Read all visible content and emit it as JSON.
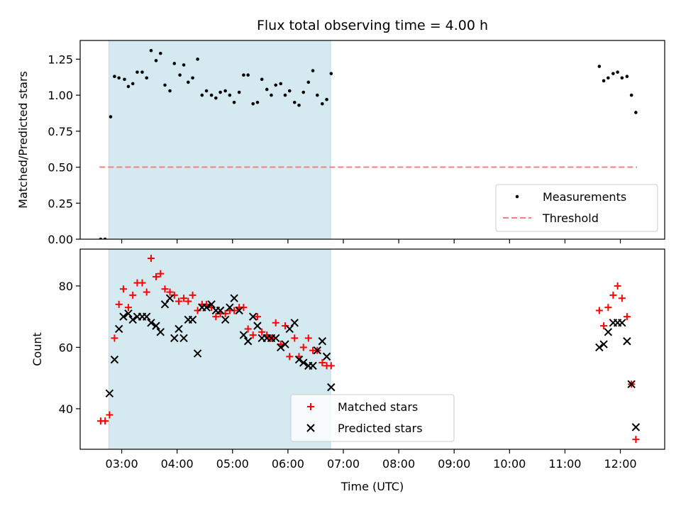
{
  "title": "Flux total observing time = 4.00 h",
  "colors": {
    "shade": "#d4eaf0",
    "measurement": "#000000",
    "threshold": "#f28080",
    "matched": "#ff0000",
    "predicted": "#000000"
  },
  "chart_data": [
    {
      "type": "scatter",
      "ylabel": "Matched/Predicted stars",
      "xlim": [
        2.25,
        12.8
      ],
      "ylim": [
        0.0,
        1.38
      ],
      "yticks": [
        0.0,
        0.25,
        0.5,
        0.75,
        1.0,
        1.25
      ],
      "ytick_labels": [
        "0.00",
        "0.25",
        "0.50",
        "0.75",
        "1.00",
        "1.25"
      ],
      "shaded_x": [
        2.77,
        6.77
      ],
      "legend": {
        "position": "lower-right",
        "entries": [
          "Measurements",
          "Threshold"
        ]
      },
      "threshold": {
        "name": "Threshold",
        "y": 0.5,
        "x": [
          2.6,
          12.3
        ]
      },
      "series": [
        {
          "name": "Measurements",
          "x": [
            2.62,
            2.7,
            2.8,
            2.87,
            2.95,
            3.05,
            3.12,
            3.2,
            3.28,
            3.37,
            3.45,
            3.53,
            3.62,
            3.7,
            3.78,
            3.87,
            3.95,
            4.05,
            4.12,
            4.2,
            4.28,
            4.37,
            4.45,
            4.53,
            4.62,
            4.7,
            4.78,
            4.87,
            4.95,
            5.03,
            5.12,
            5.2,
            5.28,
            5.37,
            5.45,
            5.53,
            5.62,
            5.7,
            5.78,
            5.87,
            5.95,
            6.03,
            6.12,
            6.2,
            6.28,
            6.37,
            6.45,
            6.53,
            6.62,
            6.7,
            6.78,
            11.62,
            11.7,
            11.78,
            11.87,
            11.95,
            12.03,
            12.12,
            12.2,
            12.28
          ],
          "y": [
            0.0,
            0.0,
            0.85,
            1.13,
            1.12,
            1.11,
            1.06,
            1.08,
            1.16,
            1.16,
            1.12,
            1.31,
            1.24,
            1.29,
            1.07,
            1.03,
            1.22,
            1.14,
            1.21,
            1.09,
            1.12,
            1.25,
            1.0,
            1.03,
            1.0,
            0.98,
            1.02,
            1.03,
            1.0,
            0.95,
            1.02,
            1.14,
            1.14,
            0.94,
            0.95,
            1.11,
            1.04,
            1.0,
            1.07,
            1.08,
            1.0,
            1.03,
            0.95,
            0.93,
            1.02,
            1.09,
            1.17,
            1.0,
            0.94,
            0.97,
            1.15,
            1.2,
            1.1,
            1.12,
            1.15,
            1.16,
            1.12,
            1.13,
            1.0,
            0.88
          ]
        }
      ]
    },
    {
      "type": "scatter",
      "ylabel": "Count",
      "xlabel": "Time (UTC)",
      "xlim": [
        2.25,
        12.8
      ],
      "ylim": [
        26.8,
        92.0
      ],
      "yticks": [
        40,
        60,
        80
      ],
      "ytick_labels": [
        "40",
        "60",
        "80"
      ],
      "xticks": [
        3,
        4,
        5,
        6,
        7,
        8,
        9,
        10,
        11,
        12
      ],
      "xtick_labels": [
        "03:00",
        "04:00",
        "05:00",
        "06:00",
        "07:00",
        "08:00",
        "09:00",
        "10:00",
        "11:00",
        "12:00"
      ],
      "shaded_x": [
        2.77,
        6.77
      ],
      "legend": {
        "position": "lower-center",
        "entries": [
          "Matched stars",
          "Predicted stars"
        ]
      },
      "series": [
        {
          "name": "Matched stars",
          "marker": "plus",
          "x": [
            2.62,
            2.7,
            2.78,
            2.87,
            2.95,
            3.03,
            3.12,
            3.2,
            3.28,
            3.37,
            3.45,
            3.53,
            3.62,
            3.7,
            3.78,
            3.87,
            3.95,
            4.03,
            4.12,
            4.2,
            4.28,
            4.37,
            4.45,
            4.53,
            4.62,
            4.7,
            4.78,
            4.87,
            4.95,
            5.03,
            5.12,
            5.2,
            5.28,
            5.37,
            5.45,
            5.53,
            5.62,
            5.7,
            5.78,
            5.87,
            5.95,
            6.03,
            6.12,
            6.2,
            6.28,
            6.37,
            6.45,
            6.53,
            6.62,
            6.7,
            6.78,
            11.62,
            11.7,
            11.78,
            11.87,
            11.95,
            12.03,
            12.12,
            12.2,
            12.28
          ],
          "y": [
            36,
            36,
            38,
            63,
            74,
            79,
            73,
            77,
            81,
            81,
            78,
            89,
            83,
            84,
            79,
            78,
            77,
            75,
            76,
            75,
            77,
            72,
            74,
            74,
            73,
            70,
            71,
            71,
            72,
            72,
            73,
            73,
            66,
            64,
            70,
            65,
            64,
            63,
            68,
            61,
            67,
            57,
            63,
            57,
            60,
            63,
            59,
            59,
            55,
            54,
            54,
            72,
            67,
            73,
            77,
            80,
            76,
            70,
            48,
            30
          ]
        },
        {
          "name": "Predicted stars",
          "marker": "x",
          "x": [
            2.78,
            2.87,
            2.95,
            3.03,
            3.12,
            3.2,
            3.28,
            3.37,
            3.45,
            3.53,
            3.62,
            3.7,
            3.78,
            3.87,
            3.95,
            4.03,
            4.12,
            4.2,
            4.28,
            4.37,
            4.45,
            4.53,
            4.62,
            4.7,
            4.78,
            4.87,
            4.95,
            5.03,
            5.12,
            5.2,
            5.28,
            5.37,
            5.45,
            5.53,
            5.62,
            5.7,
            5.78,
            5.87,
            5.95,
            6.03,
            6.12,
            6.2,
            6.28,
            6.37,
            6.45,
            6.53,
            6.62,
            6.7,
            6.78,
            11.62,
            11.7,
            11.78,
            11.87,
            11.95,
            12.03,
            12.12,
            12.2,
            12.28
          ],
          "y": [
            45,
            56,
            66,
            70,
            71,
            69,
            70,
            70,
            70,
            68,
            67,
            65,
            74,
            76,
            63,
            66,
            63,
            69,
            69,
            58,
            73,
            73,
            74,
            72,
            72,
            69,
            73,
            76,
            72,
            64,
            62,
            70,
            67,
            63,
            63,
            63,
            63,
            60,
            61,
            66,
            68,
            56,
            55,
            54,
            54,
            59,
            62,
            57,
            47,
            60,
            61,
            65,
            68,
            68,
            68,
            62,
            48,
            34
          ]
        }
      ]
    }
  ]
}
